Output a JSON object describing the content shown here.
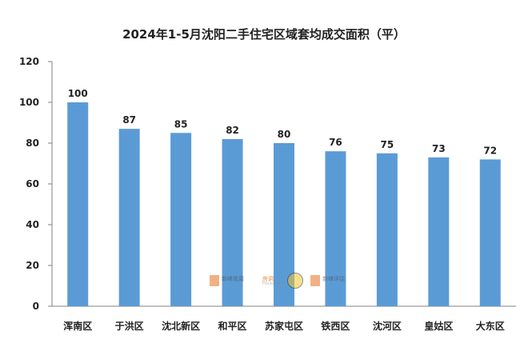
{
  "chart_data": {
    "type": "bar",
    "title": "2024年1-5月沈阳二手住宅区域套均成交面积（平）",
    "categories": [
      "浑南区",
      "于洪区",
      "沈北新区",
      "和平区",
      "苏家屯区",
      "铁西区",
      "沈河区",
      "皇姑区",
      "大东区"
    ],
    "values": [
      100,
      87,
      85,
      82,
      80,
      76,
      75,
      73,
      72
    ],
    "ylim": [
      0,
      120
    ],
    "yticks": [
      0,
      20,
      40,
      60,
      80,
      100,
      120
    ],
    "xlabel": "",
    "ylabel": "",
    "grid": false,
    "bar_color": "#5b9bd5"
  },
  "watermarks": {
    "logo1": "新峰观周",
    "logo2": "房洞",
    "logo2_sub": "HouseBook",
    "logo3": "新峰评估"
  }
}
